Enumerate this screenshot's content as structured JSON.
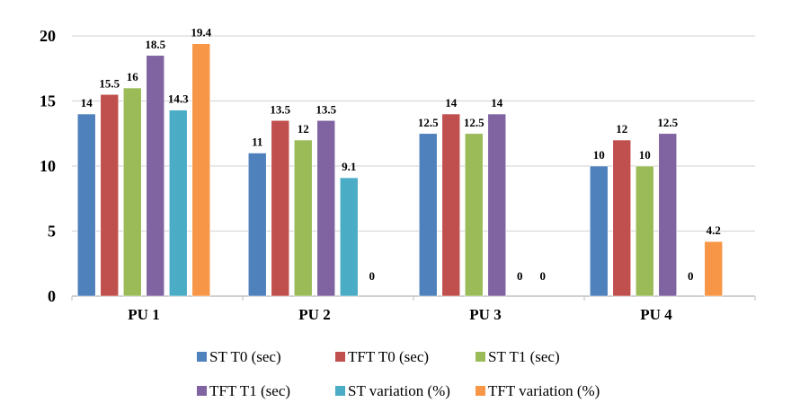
{
  "chart_data": {
    "type": "bar",
    "title": "",
    "xlabel": "",
    "ylabel": "",
    "ylim": [
      0,
      20
    ],
    "yticks": [
      0,
      5,
      10,
      15,
      20
    ],
    "grid": true,
    "legend_position": "bottom",
    "categories": [
      "PU 1",
      "PU 2",
      "PU 3",
      "PU 4"
    ],
    "series": [
      {
        "name": "ST T0 (sec)",
        "color": "#4F81BD",
        "values": [
          14,
          11,
          12.5,
          10
        ],
        "labels": [
          "14",
          "11",
          "12.5",
          "10"
        ]
      },
      {
        "name": "TFT T0 (sec)",
        "color": "#C0504D",
        "values": [
          15.5,
          13.5,
          14,
          12
        ],
        "labels": [
          "15.5",
          "13.5",
          "14",
          "12"
        ]
      },
      {
        "name": "ST T1 (sec)",
        "color": "#9BBB59",
        "values": [
          16,
          12,
          12.5,
          10
        ],
        "labels": [
          "16",
          "12",
          "12.5",
          "10"
        ]
      },
      {
        "name": "TFT T1 (sec)",
        "color": "#8064A2",
        "values": [
          18.5,
          13.5,
          14,
          12.5
        ],
        "labels": [
          "18.5",
          "13.5",
          "14",
          "12.5"
        ]
      },
      {
        "name": "ST variation (%)",
        "color": "#4BACC6",
        "values": [
          14.3,
          9.1,
          0,
          0
        ],
        "labels": [
          "14.3",
          "9.1",
          "0",
          "0"
        ]
      },
      {
        "name": "TFT variation (%)",
        "color": "#F79646",
        "values": [
          19.4,
          0,
          0,
          4.2
        ],
        "labels": [
          "19.4",
          "0",
          "0",
          "4.2"
        ]
      }
    ]
  }
}
